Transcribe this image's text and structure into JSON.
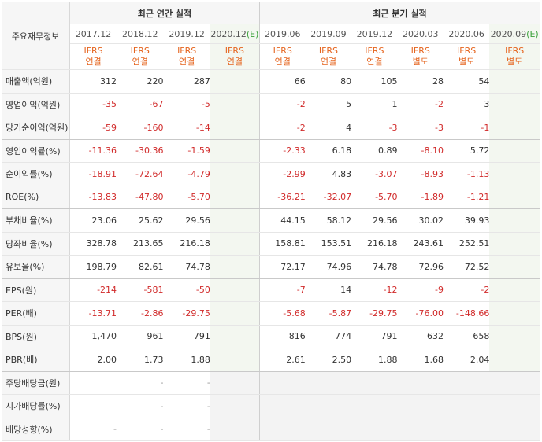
{
  "table": {
    "label_header": "주요재무정보",
    "annual_header": "최근 연간 실적",
    "quarterly_header": "최근 분기 실적",
    "periods": [
      "2017.12",
      "2018.12",
      "2019.12",
      "2020.12(E)",
      "2019.06",
      "2019.09",
      "2019.12",
      "2020.03",
      "2020.06",
      "2020.09(E)"
    ],
    "period_base": [
      "2017.12",
      "2018.12",
      "2019.12",
      "2020.12",
      "2019.06",
      "2019.09",
      "2019.12",
      "2020.03",
      "2020.06",
      "2020.09"
    ],
    "estimate_marks": [
      "",
      "",
      "",
      "(E)",
      "",
      "",
      "",
      "",
      "",
      "(E)"
    ],
    "types": [
      [
        "IFRS",
        "연결"
      ],
      [
        "IFRS",
        "연결"
      ],
      [
        "IFRS",
        "연결"
      ],
      [
        "IFRS",
        "연결"
      ],
      [
        "IFRS",
        "연결"
      ],
      [
        "IFRS",
        "연결"
      ],
      [
        "IFRS",
        "연결"
      ],
      [
        "IFRS",
        "별도"
      ],
      [
        "IFRS",
        "별도"
      ],
      [
        "IFRS",
        "별도"
      ]
    ],
    "rows": [
      {
        "label": "매출액(억원)",
        "values": [
          "312",
          "220",
          "287",
          "",
          "66",
          "80",
          "105",
          "28",
          "54",
          ""
        ]
      },
      {
        "label": "영업이익(억원)",
        "values": [
          "-35",
          "-67",
          "-5",
          "",
          "-2",
          "5",
          "1",
          "-2",
          "3",
          ""
        ]
      },
      {
        "label": "당기순이익(억원)",
        "values": [
          "-59",
          "-160",
          "-14",
          "",
          "-2",
          "4",
          "-3",
          "-3",
          "-1",
          ""
        ]
      },
      {
        "label": "영업이익률(%)",
        "values": [
          "-11.36",
          "-30.36",
          "-1.59",
          "",
          "-2.33",
          "6.18",
          "0.89",
          "-8.10",
          "5.72",
          ""
        ]
      },
      {
        "label": "순이익률(%)",
        "values": [
          "-18.91",
          "-72.64",
          "-4.79",
          "",
          "-2.99",
          "4.83",
          "-3.07",
          "-8.93",
          "-1.13",
          ""
        ]
      },
      {
        "label": "ROE(%)",
        "values": [
          "-13.83",
          "-47.80",
          "-5.70",
          "",
          "-36.21",
          "-32.07",
          "-5.70",
          "-1.89",
          "-1.21",
          ""
        ]
      },
      {
        "label": "부채비율(%)",
        "values": [
          "23.06",
          "25.62",
          "29.56",
          "",
          "44.15",
          "58.12",
          "29.56",
          "30.02",
          "39.93",
          ""
        ]
      },
      {
        "label": "당좌비율(%)",
        "values": [
          "328.78",
          "213.65",
          "216.18",
          "",
          "158.81",
          "153.51",
          "216.18",
          "243.61",
          "252.51",
          ""
        ]
      },
      {
        "label": "유보율(%)",
        "values": [
          "198.79",
          "82.61",
          "74.78",
          "",
          "72.17",
          "74.96",
          "74.78",
          "72.96",
          "72.52",
          ""
        ]
      },
      {
        "label": "EPS(원)",
        "values": [
          "-214",
          "-581",
          "-50",
          "",
          "-7",
          "14",
          "-12",
          "-9",
          "-2",
          ""
        ]
      },
      {
        "label": "PER(배)",
        "values": [
          "-13.71",
          "-2.86",
          "-29.75",
          "",
          "-5.68",
          "-5.87",
          "-29.75",
          "-76.00",
          "-148.66",
          ""
        ]
      },
      {
        "label": "BPS(원)",
        "values": [
          "1,470",
          "961",
          "791",
          "",
          "816",
          "774",
          "791",
          "632",
          "658",
          ""
        ]
      },
      {
        "label": "PBR(배)",
        "values": [
          "2.00",
          "1.73",
          "1.88",
          "",
          "2.61",
          "2.50",
          "1.88",
          "1.68",
          "2.04",
          ""
        ]
      },
      {
        "label": "주당배당금(원)",
        "values": [
          "",
          "-",
          "-",
          "",
          "",
          "",
          "",
          "",
          "",
          ""
        ]
      },
      {
        "label": "시가배당률(%)",
        "values": [
          "",
          "-",
          "-",
          "",
          "",
          "",
          "",
          "",
          "",
          ""
        ]
      },
      {
        "label": "배당성향(%)",
        "values": [
          "-",
          "-",
          "-",
          "",
          "",
          "",
          "",
          "",
          "",
          ""
        ]
      }
    ]
  },
  "colors": {
    "negative": "#d12a2a",
    "ifrs_label": "#e5641e",
    "estimate_mark": "#3aa13a",
    "estimate_column_bg": "#f3f7f0"
  }
}
